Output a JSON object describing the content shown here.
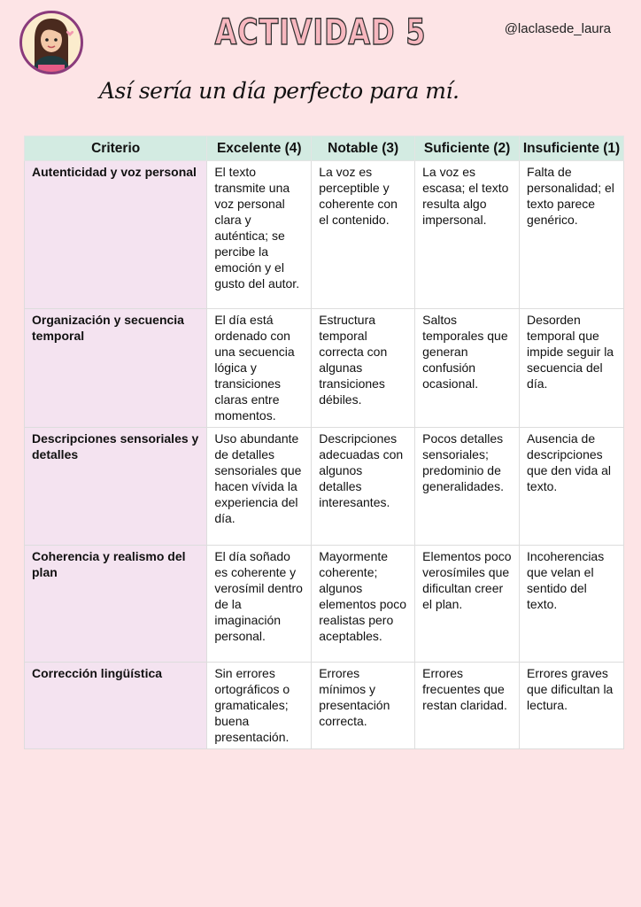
{
  "header": {
    "title": "ACTIVIDAD 5",
    "handle": "@laclasede_laura",
    "subtitle": "Así sería un día perfecto para mí."
  },
  "table": {
    "columns": [
      "Criterio",
      "Excelente (4)",
      "Notable (3)",
      "Suficiente (2)",
      "Insuficiente (1)"
    ],
    "rows": [
      [
        "Autenticidad y voz personal",
        "El texto transmite una voz personal clara y auténtica; se percibe la emoción y el gusto del autor.",
        "La voz es perceptible y coherente con el contenido.",
        "La voz es escasa; el texto resulta algo impersonal.",
        "Falta de personalidad; el texto parece genérico."
      ],
      [
        "Organización y secuencia temporal",
        "El día está ordenado con una secuencia lógica y transiciones claras entre momentos.",
        "Estructura temporal correcta con algunas transiciones débiles.",
        "Saltos temporales que generan confusión ocasional.",
        "Desorden temporal que impide seguir la secuencia del día."
      ],
      [
        "Descripciones sensoriales y detalles",
        "Uso abundante de detalles sensoriales que hacen vívida la experiencia del día.",
        "Descripciones adecuadas con algunos detalles interesantes.",
        "Pocos detalles sensoriales; predominio de generalidades.",
        "Ausencia de descripciones que den vida al texto."
      ],
      [
        "Coherencia y realismo del plan",
        "El día soñado es coherente y verosímil dentro de la imaginación personal.",
        "Mayormente coherente; algunos elementos poco realistas pero aceptables.",
        "Elementos poco verosímiles que dificultan creer el plan.",
        "Incoherencias que velan el sentido del texto."
      ],
      [
        "Corrección lingüística",
        "Sin errores ortográficos o gramaticales; buena presentación.",
        "Errores mínimos y presentación correcta.",
        "Errores frecuentes que restan claridad.",
        "Errores graves que dificultan la lectura."
      ]
    ]
  }
}
